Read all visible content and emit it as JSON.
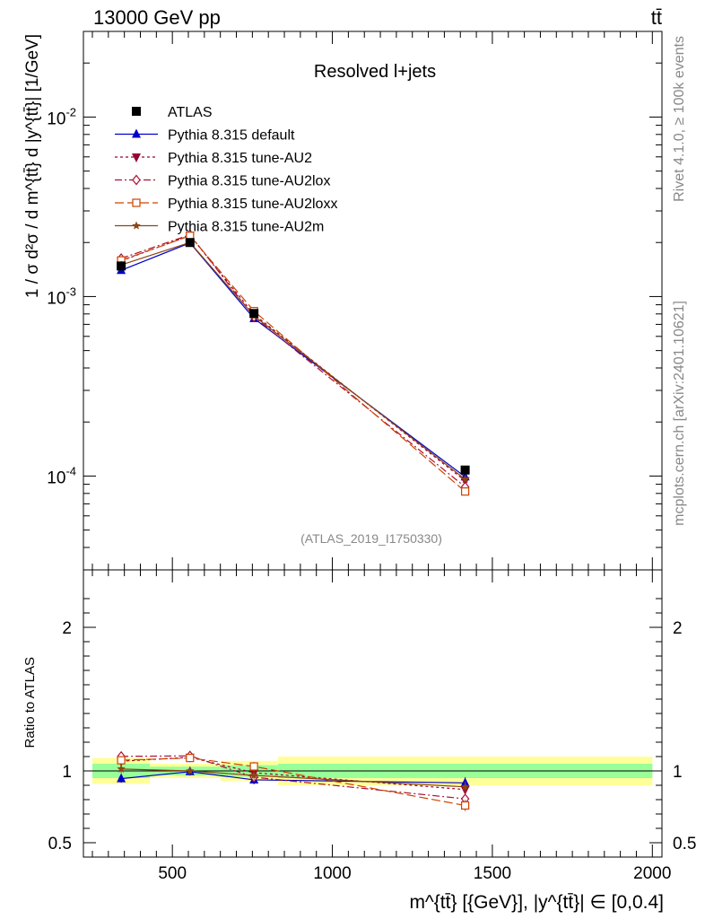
{
  "header": {
    "left": "13000 GeV pp",
    "right": "tt̄"
  },
  "side": {
    "rivet": "Rivet 4.1.0, ≥ 100k events",
    "mcplots": "mcplots.cern.ch [arXiv:2401.10621]"
  },
  "chart_data": {
    "type": "line",
    "title": "Resolved l+jets",
    "analysis_label": "(ATLAS_2019_I1750330)",
    "xlabel": "m^{tt̄} [{GeV}], |y^{tt̄}| ∈ [0,0.4]",
    "ylabel": "1 / σ d²σ / d m^{tt̄} d |y^{tt̄}| [1/GeV]",
    "ratio_ylabel": "Ratio to ATLAS",
    "xlim": [
      222,
      2030
    ],
    "ylim": [
      3e-05,
      0.03
    ],
    "yscale": "log",
    "ratio_ylim": [
      0.4,
      2.4
    ],
    "xticks": [
      500,
      1000,
      1500,
      2000
    ],
    "xtick_labels": [
      "500",
      "1000",
      "1500",
      "2000"
    ],
    "ytick_labels": [
      "10^{-2}",
      "10^{-3}",
      "10^{-4}"
    ],
    "ratio_yticks": [
      0.5,
      1,
      2
    ],
    "ratio_ytick_labels": [
      "0.5",
      "1",
      "2"
    ],
    "bins": [
      [
        250,
        430
      ],
      [
        430,
        650
      ],
      [
        650,
        830
      ],
      [
        830,
        2000
      ]
    ],
    "x": [
      340,
      555,
      755,
      1415
    ],
    "data": {
      "name": "ATLAS",
      "values": [
        0.00148,
        0.002,
        0.000805,
        0.000108
      ],
      "band_inner": [
        0.05,
        0.03,
        0.04,
        0.05
      ],
      "band_outer": [
        0.09,
        0.05,
        0.07,
        0.1
      ]
    },
    "series": [
      {
        "name": "Pythia 8.315 default",
        "color": "#0000cc",
        "marker": "triangle-up",
        "dash": "",
        "values": [
          0.0014,
          0.00199,
          0.000755,
          9.9e-05
        ],
        "errors": [
          3e-05,
          4e-05,
          1.8e-05,
          3e-06
        ]
      },
      {
        "name": "Pythia 8.315 tune-AU2",
        "color": "#990033",
        "marker": "triangle-down",
        "dash": "3,3",
        "values": [
          0.00158,
          0.00219,
          0.000795,
          9.4e-05
        ],
        "errors": [
          3e-05,
          4e-05,
          1.8e-05,
          3e-06
        ]
      },
      {
        "name": "Pythia 8.315 tune-AU2lox",
        "color": "#aa1133",
        "marker": "diamond",
        "dash": "8,3,2,3",
        "values": [
          0.00163,
          0.00221,
          0.00077,
          8.7e-05
        ],
        "errors": [
          3e-05,
          4e-05,
          1.8e-05,
          3e-06
        ]
      },
      {
        "name": "Pythia 8.315 tune-AU2loxx",
        "color": "#cc4400",
        "marker": "square-open",
        "dash": "10,4",
        "values": [
          0.00159,
          0.00218,
          0.00083,
          8.2e-05
        ],
        "errors": [
          3e-05,
          4e-05,
          1.8e-05,
          3e-06
        ]
      },
      {
        "name": "Pythia 8.315 tune-AU2m",
        "color": "#8b4513",
        "marker": "star",
        "dash": "",
        "values": [
          0.0015,
          0.002,
          0.00078,
          9.6e-05
        ],
        "errors": [
          3e-05,
          4e-05,
          1.8e-05,
          3e-06
        ]
      }
    ]
  }
}
